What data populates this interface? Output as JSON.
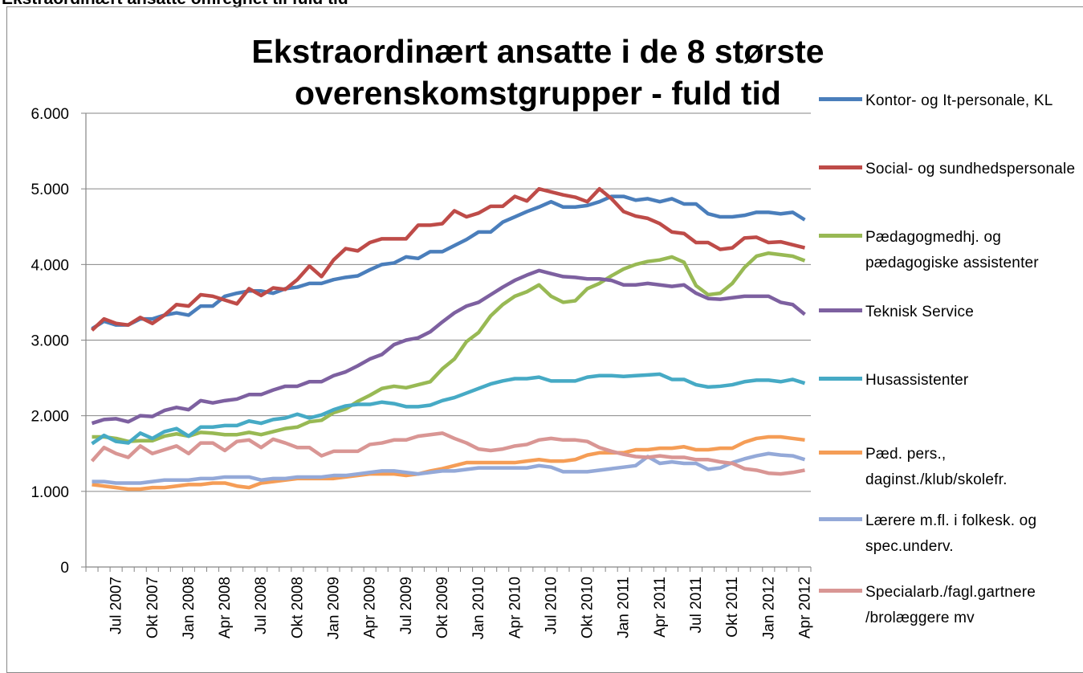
{
  "header": {
    "title": "Ekstraordinært ansatte omregnet til fuld tid"
  },
  "chart_data": {
    "type": "line",
    "title": "Ekstraordinært ansatte i de 8 største overenskomstgrupper - fuld tid",
    "categories": [
      null,
      null,
      "Jul 2007",
      null,
      null,
      "Okt 2007",
      null,
      null,
      "Jan 2008",
      null,
      null,
      "Apr 2008",
      null,
      null,
      "Jul 2008",
      null,
      null,
      "Okt 2008",
      null,
      null,
      "Jan 2009",
      null,
      null,
      "Apr 2009",
      null,
      null,
      "Jul 2009",
      null,
      null,
      "Okt 2009",
      null,
      null,
      "Jan 2010",
      null,
      null,
      "Apr 2010",
      null,
      null,
      "Jul 2010",
      null,
      null,
      "Okt 2010",
      null,
      null,
      "Jan 2011",
      null,
      null,
      "Apr 2011",
      null,
      null,
      "Jul 2011",
      null,
      null,
      "Okt 2011",
      null,
      null,
      "Jan 2012",
      null,
      null,
      "Apr 2012"
    ],
    "ylim": [
      0,
      6000
    ],
    "yticks": [
      0,
      {
        "value": 1000,
        "label": "1.000"
      },
      {
        "value": 2000,
        "label": "2.000"
      },
      {
        "value": 3000,
        "label": "3.000"
      },
      {
        "value": 4000,
        "label": "4.000"
      },
      {
        "value": 5000,
        "label": "5.000"
      },
      {
        "value": 6000,
        "label": "6.000"
      }
    ],
    "grid": true,
    "legend": "right",
    "series": [
      {
        "name": "Kontor- og It-personale, KL",
        "color": "#4a7ebb",
        "values": [
          3150,
          3250,
          3200,
          3200,
          3280,
          3280,
          3330,
          3360,
          3330,
          3450,
          3450,
          3580,
          3620,
          3650,
          3650,
          3620,
          3680,
          3700,
          3750,
          3750,
          3800,
          3830,
          3850,
          3930,
          4000,
          4020,
          4100,
          4080,
          4170,
          4170,
          4250,
          4330,
          4430,
          4430,
          4560,
          4630,
          4700,
          4760,
          4830,
          4760,
          4760,
          4780,
          4830,
          4900,
          4900,
          4850,
          4870,
          4830,
          4870,
          4800,
          4800,
          4670,
          4630,
          4630,
          4650,
          4690,
          4690,
          4670,
          4690,
          4590
        ]
      },
      {
        "name": "Social- og sundhedspersonale",
        "color": "#be4b48",
        "values": [
          3130,
          3280,
          3220,
          3200,
          3300,
          3220,
          3330,
          3470,
          3450,
          3600,
          3580,
          3530,
          3480,
          3680,
          3590,
          3690,
          3670,
          3800,
          3980,
          3840,
          4060,
          4210,
          4180,
          4290,
          4340,
          4340,
          4340,
          4520,
          4520,
          4540,
          4710,
          4630,
          4680,
          4770,
          4770,
          4900,
          4840,
          5000,
          4960,
          4920,
          4890,
          4830,
          5000,
          4870,
          4700,
          4640,
          4610,
          4540,
          4430,
          4410,
          4290,
          4290,
          4200,
          4220,
          4350,
          4360,
          4290,
          4300,
          4260,
          4220
        ]
      },
      {
        "name": "Pædagogmedhj. og pædagogiske assistenter",
        "color": "#98b954",
        "values": [
          1720,
          1720,
          1700,
          1660,
          1670,
          1670,
          1730,
          1760,
          1730,
          1780,
          1770,
          1750,
          1750,
          1780,
          1750,
          1790,
          1830,
          1850,
          1920,
          1940,
          2040,
          2090,
          2190,
          2270,
          2360,
          2390,
          2370,
          2410,
          2450,
          2620,
          2750,
          2980,
          3100,
          3320,
          3470,
          3580,
          3640,
          3730,
          3580,
          3500,
          3520,
          3680,
          3750,
          3850,
          3940,
          4000,
          4040,
          4060,
          4100,
          4030,
          3720,
          3600,
          3620,
          3750,
          3960,
          4110,
          4150,
          4130,
          4110,
          4050
        ]
      },
      {
        "name": "Teknisk Service",
        "color": "#7d60a0",
        "values": [
          1900,
          1950,
          1960,
          1920,
          2000,
          1990,
          2070,
          2110,
          2080,
          2200,
          2170,
          2200,
          2220,
          2280,
          2280,
          2340,
          2390,
          2390,
          2450,
          2450,
          2530,
          2580,
          2660,
          2750,
          2810,
          2940,
          3000,
          3030,
          3110,
          3240,
          3360,
          3450,
          3500,
          3600,
          3700,
          3790,
          3860,
          3920,
          3880,
          3840,
          3830,
          3810,
          3810,
          3790,
          3730,
          3730,
          3750,
          3730,
          3710,
          3730,
          3620,
          3550,
          3540,
          3560,
          3580,
          3580,
          3580,
          3500,
          3470,
          3340
        ]
      },
      {
        "name": "Husassistenter",
        "color": "#46aac5",
        "values": [
          1630,
          1740,
          1660,
          1640,
          1770,
          1700,
          1790,
          1830,
          1730,
          1850,
          1850,
          1870,
          1870,
          1930,
          1900,
          1950,
          1970,
          2020,
          1970,
          2010,
          2080,
          2130,
          2150,
          2150,
          2180,
          2160,
          2120,
          2120,
          2140,
          2200,
          2240,
          2300,
          2360,
          2420,
          2460,
          2490,
          2490,
          2510,
          2460,
          2460,
          2460,
          2510,
          2530,
          2530,
          2520,
          2530,
          2540,
          2550,
          2480,
          2480,
          2410,
          2380,
          2390,
          2410,
          2450,
          2470,
          2470,
          2450,
          2480,
          2430
        ]
      },
      {
        "name": "Pæd. pers., daginst./klub/skolefr.",
        "color": "#f59d56",
        "values": [
          1090,
          1070,
          1050,
          1030,
          1030,
          1050,
          1050,
          1070,
          1090,
          1090,
          1110,
          1110,
          1070,
          1050,
          1110,
          1130,
          1150,
          1170,
          1170,
          1170,
          1170,
          1190,
          1210,
          1230,
          1230,
          1230,
          1210,
          1230,
          1270,
          1300,
          1340,
          1380,
          1380,
          1380,
          1380,
          1380,
          1400,
          1420,
          1400,
          1400,
          1420,
          1480,
          1510,
          1510,
          1510,
          1550,
          1550,
          1570,
          1570,
          1590,
          1550,
          1550,
          1570,
          1570,
          1650,
          1700,
          1720,
          1720,
          1700,
          1680
        ]
      },
      {
        "name": "Lærere m.fl. i folkesk. og spec.underv.",
        "color": "#94a9d8",
        "values": [
          1130,
          1130,
          1110,
          1110,
          1110,
          1130,
          1150,
          1150,
          1150,
          1170,
          1170,
          1190,
          1190,
          1190,
          1150,
          1170,
          1170,
          1190,
          1190,
          1190,
          1210,
          1210,
          1230,
          1250,
          1270,
          1270,
          1250,
          1230,
          1250,
          1270,
          1270,
          1290,
          1310,
          1310,
          1310,
          1310,
          1310,
          1340,
          1320,
          1260,
          1260,
          1260,
          1280,
          1300,
          1320,
          1340,
          1460,
          1370,
          1390,
          1370,
          1370,
          1290,
          1310,
          1380,
          1430,
          1470,
          1500,
          1480,
          1470,
          1420
        ]
      },
      {
        "name": "Specialarb./fagl.gartnere /brolæggere mv",
        "color": "#d99694",
        "values": [
          1400,
          1580,
          1500,
          1450,
          1600,
          1500,
          1550,
          1600,
          1500,
          1640,
          1640,
          1540,
          1660,
          1680,
          1580,
          1690,
          1640,
          1580,
          1580,
          1470,
          1530,
          1530,
          1530,
          1620,
          1640,
          1680,
          1680,
          1730,
          1750,
          1770,
          1700,
          1640,
          1560,
          1540,
          1560,
          1600,
          1620,
          1680,
          1700,
          1680,
          1680,
          1660,
          1580,
          1530,
          1490,
          1460,
          1450,
          1470,
          1450,
          1450,
          1420,
          1420,
          1390,
          1370,
          1300,
          1280,
          1240,
          1230,
          1250,
          1280
        ]
      }
    ]
  }
}
